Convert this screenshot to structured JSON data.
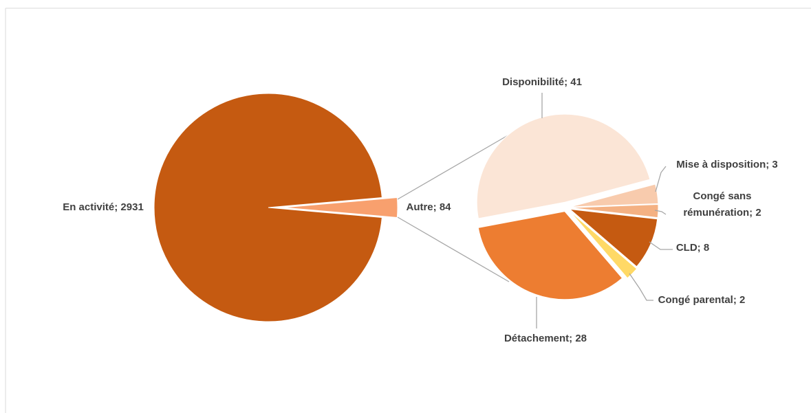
{
  "chart_data": [
    {
      "type": "pie",
      "categories": [
        "En activité",
        "Autre"
      ],
      "values": [
        2931,
        84
      ],
      "value_labels": [
        "En activité; 2931",
        "Autre; 84"
      ],
      "colors": [
        "#c55a11",
        "#f8a06e"
      ]
    },
    {
      "type": "pie",
      "categories": [
        "Disponibilité",
        "Mise à disposition",
        "Congé sans rémunération",
        "CLD",
        "Congé parental",
        "Détachement"
      ],
      "values": [
        41,
        3,
        2,
        8,
        2,
        28
      ],
      "value_labels": [
        "Disponibilité; 41",
        "Mise à disposition; 3",
        "Congé sans rémunération; 2",
        "CLD; 8",
        "Congé parental; 2",
        "Détachement; 28"
      ],
      "colors": [
        "#fbe5d6",
        "#f8cbad",
        "#f4b183",
        "#c55a11",
        "#ffd966",
        "#ed7d31"
      ]
    }
  ]
}
